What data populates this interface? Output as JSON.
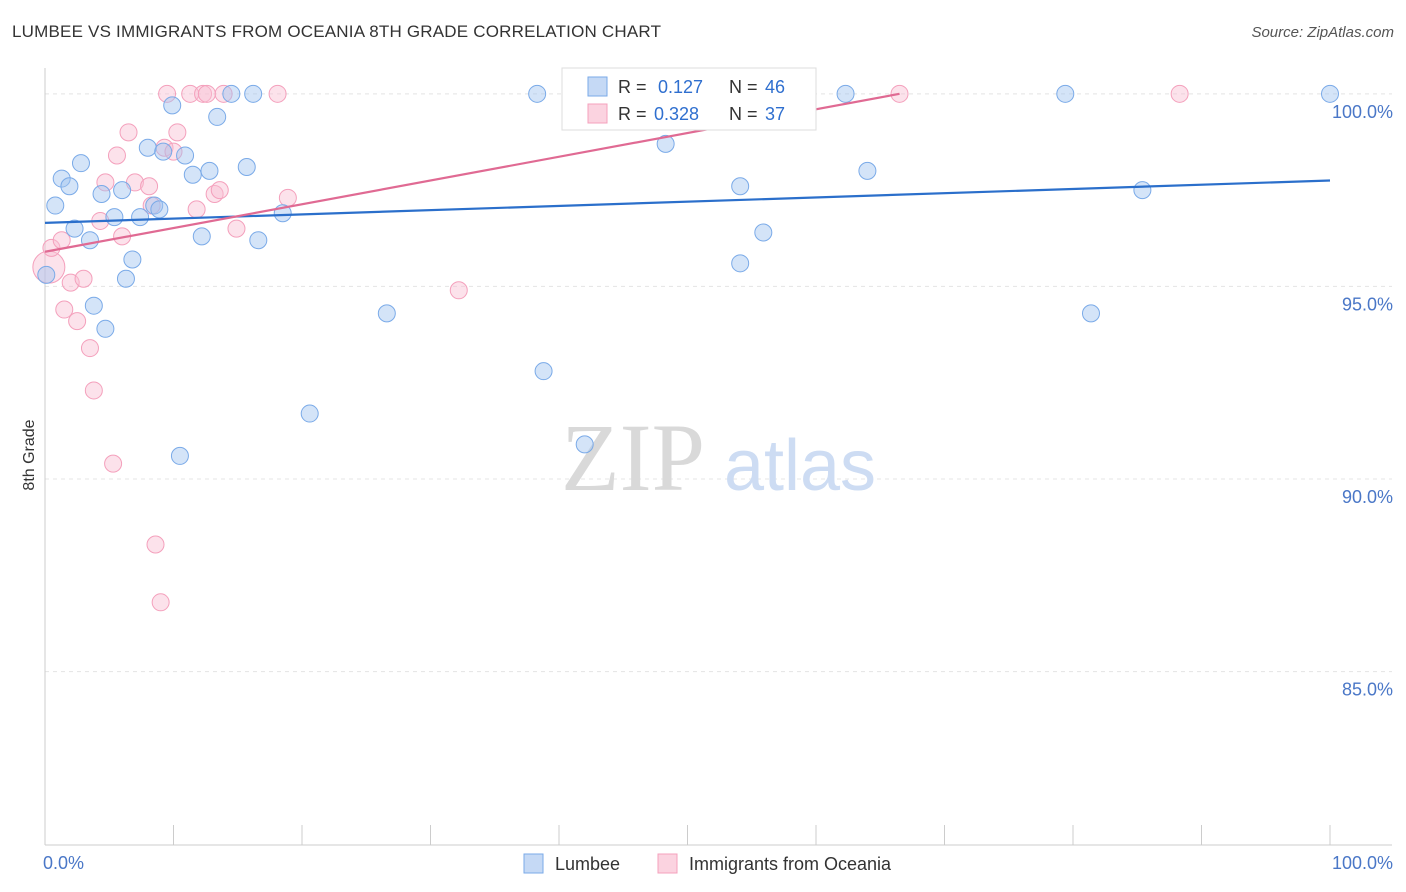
{
  "title": "LUMBEE VS IMMIGRANTS FROM OCEANIA 8TH GRADE CORRELATION CHART",
  "source": "Source: ZipAtlas.com",
  "watermark": {
    "left": "ZIP",
    "right": "atlas"
  },
  "chart_data": {
    "type": "scatter",
    "title": "LUMBEE VS IMMIGRANTS FROM OCEANIA 8TH GRADE CORRELATION CHART",
    "xlabel": "",
    "ylabel": "8th Grade",
    "xlim": [
      0,
      100
    ],
    "ylim": [
      80.5,
      100.8
    ],
    "x_tick_labels": [
      "0.0%",
      "100.0%"
    ],
    "y_ticks": [
      85,
      90,
      95,
      100
    ],
    "y_tick_labels": [
      "85.0%",
      "90.0%",
      "95.0%",
      "100.0%"
    ],
    "grid": true,
    "colors": {
      "lumbee": "#7aaae8",
      "oceania": "#f4a0bc",
      "lumbee_line": "#2b6fcb",
      "oceania_line": "#e06a93",
      "axis_text": "#4a77c7"
    },
    "legend": [
      {
        "r_label": "R = ",
        "r_value": "0.127",
        "n_label": "N = ",
        "n_value": "46"
      },
      {
        "r_label": "R = ",
        "r_value": "0.328",
        "n_label": "N = ",
        "n_value": "37"
      }
    ],
    "series": [
      {
        "name": "Lumbee",
        "trend": [
          [
            0,
            96.65
          ],
          [
            100,
            97.75
          ]
        ],
        "points": [
          [
            0.1,
            95.3
          ],
          [
            0.8,
            97.1
          ],
          [
            1.3,
            97.8
          ],
          [
            1.9,
            97.6
          ],
          [
            2.3,
            96.5
          ],
          [
            2.8,
            98.2
          ],
          [
            3.5,
            96.2
          ],
          [
            3.8,
            94.5
          ],
          [
            4.4,
            97.4
          ],
          [
            4.7,
            93.9
          ],
          [
            5.4,
            96.8
          ],
          [
            6.0,
            97.5
          ],
          [
            6.3,
            95.2
          ],
          [
            6.8,
            95.7
          ],
          [
            7.4,
            96.8
          ],
          [
            8.0,
            98.6
          ],
          [
            8.5,
            97.1
          ],
          [
            8.9,
            97.0
          ],
          [
            9.2,
            98.5
          ],
          [
            9.9,
            99.7
          ],
          [
            10.5,
            90.6
          ],
          [
            10.9,
            98.4
          ],
          [
            11.5,
            97.9
          ],
          [
            12.2,
            96.3
          ],
          [
            12.8,
            98.0
          ],
          [
            13.4,
            99.4
          ],
          [
            14.5,
            100.0
          ],
          [
            15.7,
            98.1
          ],
          [
            16.2,
            100.0
          ],
          [
            16.6,
            96.2
          ],
          [
            18.5,
            96.9
          ],
          [
            20.6,
            91.7
          ],
          [
            26.6,
            94.3
          ],
          [
            38.3,
            100.0
          ],
          [
            38.8,
            92.8
          ],
          [
            42.0,
            90.9
          ],
          [
            48.3,
            98.7
          ],
          [
            54.1,
            97.6
          ],
          [
            54.1,
            95.6
          ],
          [
            55.9,
            96.4
          ],
          [
            62.3,
            100.0
          ],
          [
            64.0,
            98.0
          ],
          [
            79.4,
            100.0
          ],
          [
            81.4,
            94.3
          ],
          [
            85.4,
            97.5
          ],
          [
            100.0,
            100.0
          ]
        ]
      },
      {
        "name": "Immigrants from Oceania",
        "trend": [
          [
            0,
            95.9
          ],
          [
            66.5,
            100.0
          ]
        ],
        "points": [
          [
            0.3,
            95.5
          ],
          [
            0.5,
            96.0
          ],
          [
            1.3,
            96.2
          ],
          [
            1.5,
            94.4
          ],
          [
            2.0,
            95.1
          ],
          [
            2.5,
            94.1
          ],
          [
            3.0,
            95.2
          ],
          [
            3.5,
            93.4
          ],
          [
            3.8,
            92.3
          ],
          [
            4.3,
            96.7
          ],
          [
            4.7,
            97.7
          ],
          [
            5.3,
            90.4
          ],
          [
            5.6,
            98.4
          ],
          [
            6.0,
            96.3
          ],
          [
            6.5,
            99.0
          ],
          [
            7.0,
            97.7
          ],
          [
            8.1,
            97.6
          ],
          [
            8.3,
            97.1
          ],
          [
            8.6,
            88.3
          ],
          [
            9.0,
            86.8
          ],
          [
            9.3,
            98.6
          ],
          [
            9.5,
            100.0
          ],
          [
            10.0,
            98.5
          ],
          [
            10.3,
            99.0
          ],
          [
            11.3,
            100.0
          ],
          [
            11.8,
            97.0
          ],
          [
            12.3,
            100.0
          ],
          [
            12.6,
            100.0
          ],
          [
            13.2,
            97.4
          ],
          [
            13.6,
            97.5
          ],
          [
            13.9,
            100.0
          ],
          [
            14.9,
            96.5
          ],
          [
            18.1,
            100.0
          ],
          [
            18.9,
            97.3
          ],
          [
            32.2,
            94.9
          ],
          [
            66.5,
            100.0
          ],
          [
            88.3,
            100.0
          ]
        ]
      }
    ]
  }
}
